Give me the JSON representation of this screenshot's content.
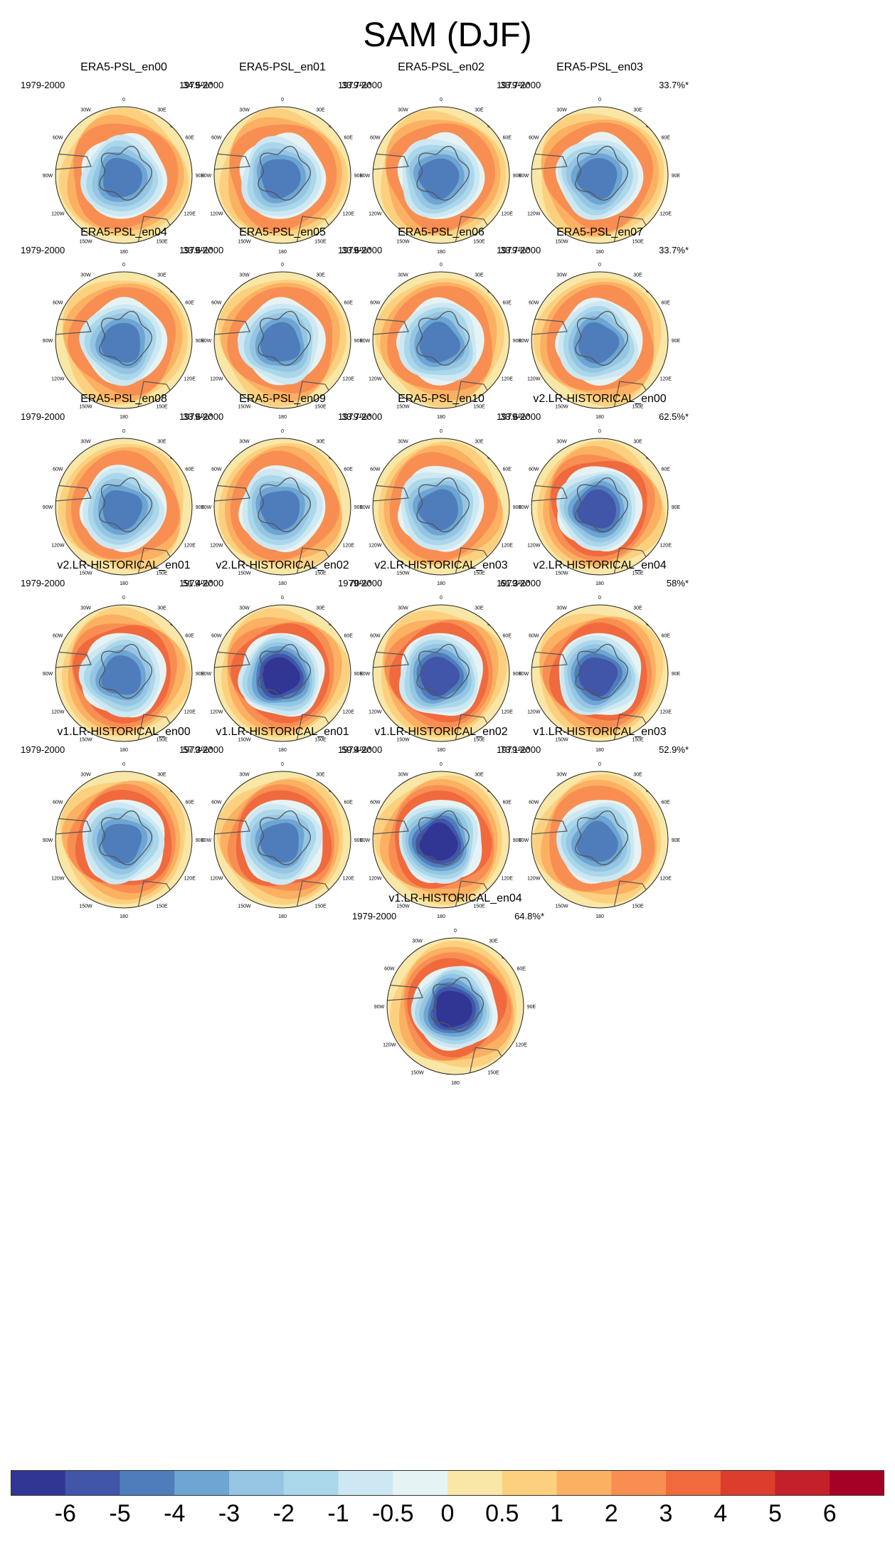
{
  "title": "SAM (DJF)",
  "period": "1979-2000",
  "lon_labels": [
    "0",
    "30E",
    "60E",
    "90E",
    "120E",
    "150E",
    "180",
    "150W",
    "120W",
    "90W",
    "60W",
    "30W"
  ],
  "colorbar": {
    "colors": [
      "#313695",
      "#4156a8",
      "#4f7dbb",
      "#6da6d2",
      "#95c5e3",
      "#aad7ea",
      "#cde8f2",
      "#e6f3f4",
      "#f8e7a6",
      "#fdd07f",
      "#fcb062",
      "#f98e52",
      "#f06a3e",
      "#dc3d2c",
      "#c3202a",
      "#a50026"
    ],
    "labels": [
      "-6",
      "-5",
      "-4",
      "-3",
      "-2",
      "-1",
      "-0.5",
      "0",
      "0.5",
      "1",
      "2",
      "3",
      "4",
      "5",
      "6"
    ]
  },
  "chart_data": {
    "type": "polar_contour_maps",
    "title": "SAM (DJF)",
    "period": "1979-2000",
    "colorbar_levels": [
      -6,
      -5,
      -4,
      -3,
      -2,
      -1,
      -0.5,
      0,
      0.5,
      1,
      2,
      3,
      4,
      5,
      6
    ],
    "panels": [
      {
        "name": "ERA5-PSL_en00",
        "explained_variance": "34.5%*",
        "min_level": -4,
        "max_level": 2
      },
      {
        "name": "ERA5-PSL_en01",
        "explained_variance": "33.7%*",
        "min_level": -4,
        "max_level": 2
      },
      {
        "name": "ERA5-PSL_en02",
        "explained_variance": "33.7%*",
        "min_level": -4,
        "max_level": 2
      },
      {
        "name": "ERA5-PSL_en03",
        "explained_variance": "33.7%*",
        "min_level": -4,
        "max_level": 2
      },
      {
        "name": "ERA5-PSL_en04",
        "explained_variance": "33.6%*",
        "min_level": -4,
        "max_level": 2
      },
      {
        "name": "ERA5-PSL_en05",
        "explained_variance": "33.6%*",
        "min_level": -4,
        "max_level": 2
      },
      {
        "name": "ERA5-PSL_en06",
        "explained_variance": "33.7%*",
        "min_level": -4,
        "max_level": 2
      },
      {
        "name": "ERA5-PSL_en07",
        "explained_variance": "33.7%*",
        "min_level": -4,
        "max_level": 2
      },
      {
        "name": "ERA5-PSL_en08",
        "explained_variance": "33.6%*",
        "min_level": -4,
        "max_level": 2
      },
      {
        "name": "ERA5-PSL_en09",
        "explained_variance": "33.7%*",
        "min_level": -4,
        "max_level": 2
      },
      {
        "name": "ERA5-PSL_en10",
        "explained_variance": "33.6%*",
        "min_level": -4,
        "max_level": 2
      },
      {
        "name": "v2.LR-HISTORICAL_en00",
        "explained_variance": "62.5%*",
        "min_level": -5,
        "max_level": 3
      },
      {
        "name": "v2.LR-HISTORICAL_en01",
        "explained_variance": "51.4%*",
        "min_level": -4,
        "max_level": 3
      },
      {
        "name": "v2.LR-HISTORICAL_en02",
        "explained_variance": "70%*",
        "min_level": -6,
        "max_level": 3
      },
      {
        "name": "v2.LR-HISTORICAL_en03",
        "explained_variance": "61.3%*",
        "min_level": -5,
        "max_level": 3
      },
      {
        "name": "v2.LR-HISTORICAL_en04",
        "explained_variance": "58%*",
        "min_level": -5,
        "max_level": 3
      },
      {
        "name": "v1.LR-HISTORICAL_en00",
        "explained_variance": "57.3%*",
        "min_level": -4,
        "max_level": 3
      },
      {
        "name": "v1.LR-HISTORICAL_en01",
        "explained_variance": "59.4%*",
        "min_level": -4,
        "max_level": 3
      },
      {
        "name": "v1.LR-HISTORICAL_en02",
        "explained_variance": "73.1%*",
        "min_level": -6,
        "max_level": 3
      },
      {
        "name": "v1.LR-HISTORICAL_en03",
        "explained_variance": "52.9%*",
        "min_level": -4,
        "max_level": 2
      },
      {
        "name": "v1.LR-HISTORICAL_en04",
        "explained_variance": "64.8%*",
        "min_level": -6,
        "max_level": 3
      }
    ]
  }
}
